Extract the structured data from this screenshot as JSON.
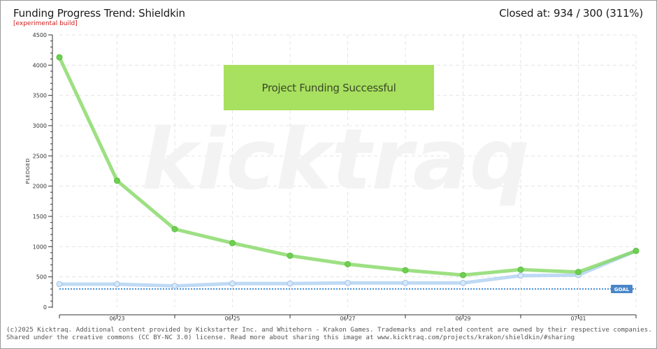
{
  "header": {
    "title": "Funding Progress Trend: Shieldkin",
    "subtitle": "[experimental build]",
    "closed_label": "Closed at:",
    "closed_value": "934 / 300 (311%)"
  },
  "banner": {
    "text": "Project Funding Successful",
    "color": "#a8e05f"
  },
  "footer": {
    "line1": "(c)2025 Kicktraq. Additional content provided by Kickstarter Inc. and Whitehorn - Krakon Games. Trademarks and related content are owned by their respective companies.",
    "line2": "Shared under the creative commons (CC BY-NC 3.0) license. Read more about sharing this image at www.kicktraq.com/projects/krakon/shieldkin/#sharing"
  },
  "chart_data": {
    "type": "line",
    "ylabel": "PLEDGED",
    "ylim": [
      0,
      4500
    ],
    "yticks": [
      0,
      500,
      1000,
      1500,
      2000,
      2500,
      3000,
      3500,
      4000,
      4500
    ],
    "x": [
      "06-22",
      "06-23",
      "06-24",
      "06-25",
      "06-26",
      "06-27",
      "06-28",
      "06-29",
      "06-30",
      "07-01",
      "07-02"
    ],
    "xtick_labels": [
      "",
      "06-23",
      "",
      "06-25",
      "",
      "06-27",
      "",
      "06-29",
      "",
      "07-01",
      ""
    ],
    "grid": true,
    "goal": {
      "value": 300,
      "label": "GOAL",
      "color": "#4a90d9"
    },
    "series": [
      {
        "values": [
          4130,
          2090,
          1290,
          1060,
          850,
          710,
          610,
          530,
          620,
          580,
          930
        ],
        "color": "#7cd65a"
      },
      {
        "values": [
          380,
          380,
          350,
          390,
          390,
          400,
          400,
          400,
          520,
          530,
          930
        ],
        "color": "#a9cdf0"
      }
    ]
  }
}
